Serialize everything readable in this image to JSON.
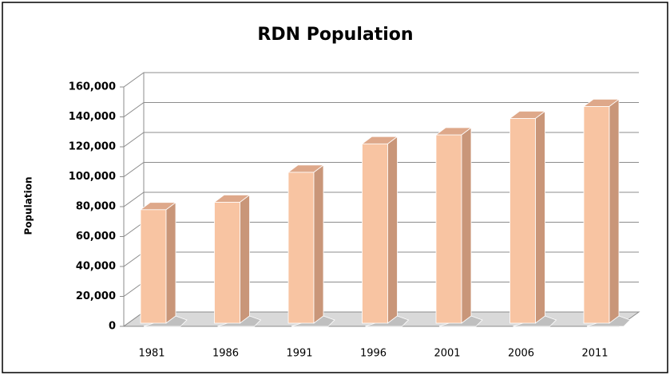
{
  "chart_data": {
    "type": "bar3d",
    "title": "RDN Population",
    "y_label": "Population",
    "categories": [
      "1981",
      "1986",
      "1991",
      "1996",
      "2001",
      "2006",
      "2011"
    ],
    "values": [
      78000,
      83000,
      103000,
      122000,
      128000,
      139000,
      147000
    ],
    "color": "#f8c4a2",
    "ylim": [
      0,
      160000
    ],
    "yticks": [
      0,
      {
        "value": 20000,
        "label": "20,000"
      },
      {
        "value": 40000,
        "label": "40,000"
      },
      {
        "value": 60000,
        "label": "60,000"
      },
      {
        "value": 80000,
        "label": "80,000"
      },
      {
        "value": 100000,
        "label": "100,000"
      },
      {
        "value": 120000,
        "label": "120,000"
      },
      {
        "value": 140000,
        "label": "140,000"
      },
      {
        "value": 160000,
        "label": "160,000"
      }
    ],
    "grid": true
  }
}
